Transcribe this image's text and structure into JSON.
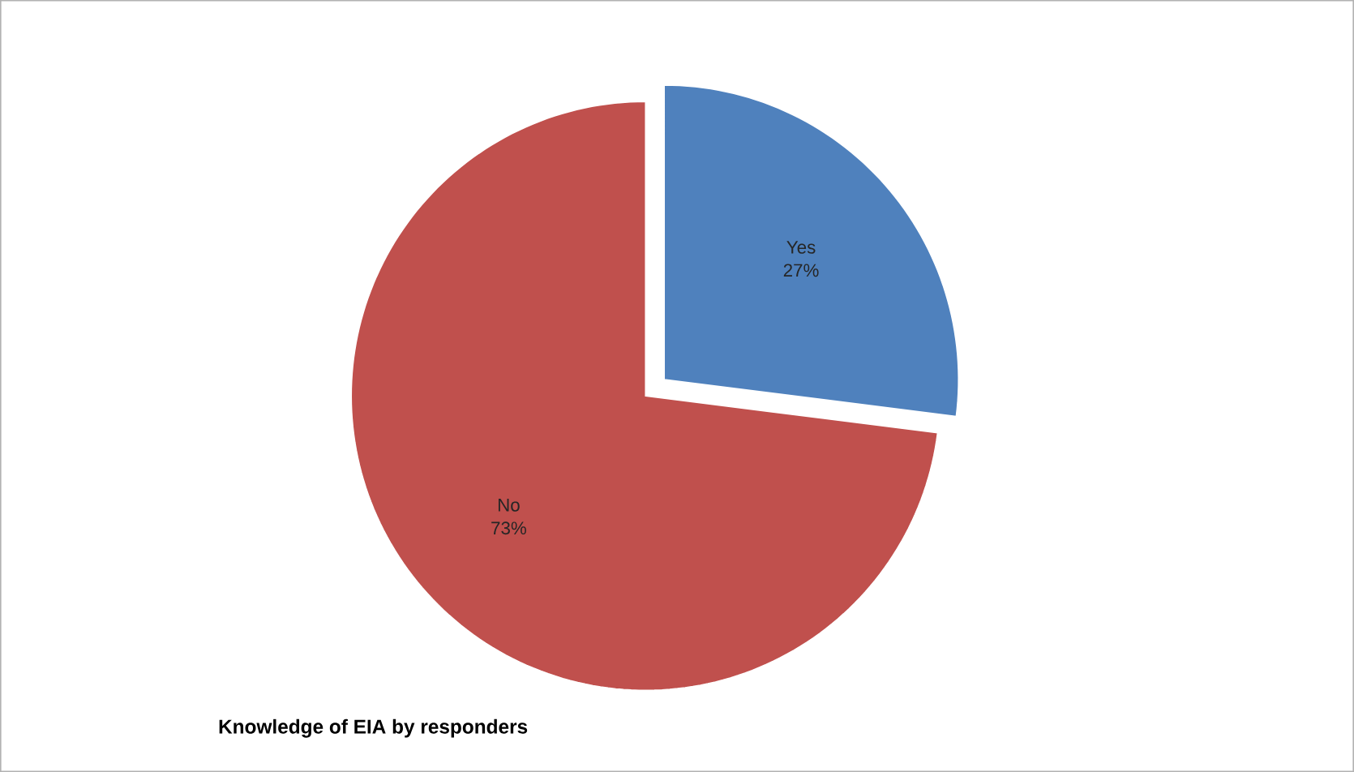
{
  "chart_data": {
    "type": "pie",
    "title": "Knowledge of EIA by responders",
    "categories": [
      "Yes",
      "No"
    ],
    "values": [
      27,
      73
    ],
    "colors": [
      "#4f81bd",
      "#c0504d"
    ],
    "value_labels": [
      "27%",
      "73%"
    ]
  }
}
